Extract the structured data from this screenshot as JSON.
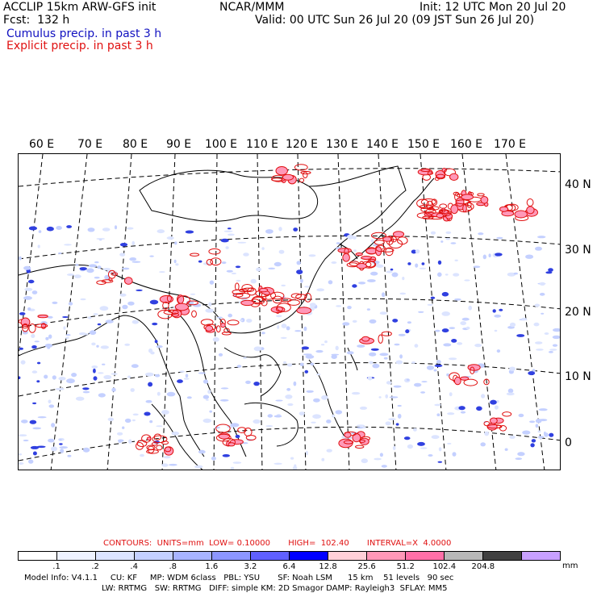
{
  "header": {
    "model_line": "ACCLIP 15km ARW-GFS init",
    "center": "NCAR/MMM",
    "init": "Init: 12 UTC Mon 20 Jul 20",
    "fcst": "Fcst:  132 h",
    "valid": "Valid: 00 UTC Sun 26 Jul 20 (09 JST Sun 26 Jul 20)",
    "legend_cumulus": "Cumulus precip. in past 3 h",
    "legend_explicit": "Explicit precip. in past 3 h"
  },
  "colors": {
    "cumulus": "#1010c0",
    "explicit": "#e01010",
    "frame": "#000000"
  },
  "map": {
    "lon_labels": [
      "60 E",
      "70 E",
      "80 E",
      "90 E",
      "100 E",
      "110 E",
      "120 E",
      "130 E",
      "140 E",
      "150 E",
      "160 E",
      "170 E"
    ],
    "lat_labels": [
      "40 N",
      "30 N",
      "20 N",
      "10 N",
      "0"
    ]
  },
  "contours": {
    "line": "CONTOURS:  UNITS=mm  LOW= 0.10000       HIGH=  102.40       INTERVAL=X  4.0000"
  },
  "colorbar": {
    "colors": [
      "#ffffff",
      "#eef2ff",
      "#dce4ff",
      "#c4d0ff",
      "#a8b4ff",
      "#8c96ff",
      "#6060ff",
      "#0000ff",
      "#ffd0d8",
      "#ff98b8",
      "#ff70a8",
      "#b8b8b8",
      "#404040",
      "#c8a0ff"
    ],
    "labels": [
      ".1",
      ".2",
      ".4",
      ".8",
      "1.6",
      "3.2",
      "6.4",
      "12.8",
      "25.6",
      "51.2",
      "102.4",
      "204.8"
    ],
    "unit": "mm"
  },
  "footer": {
    "line1": "Model Info: V4.1.1     CU: KF     MP: WDM 6class   PBL: YSU       SF: Noah LSM      15 km    51 levels   90 sec",
    "line2": "LW: RRTMG   SW: RRTMG   DIFF: simple KM: 2D Smagor DAMP: Rayleigh3  SFLAY: MM5"
  }
}
